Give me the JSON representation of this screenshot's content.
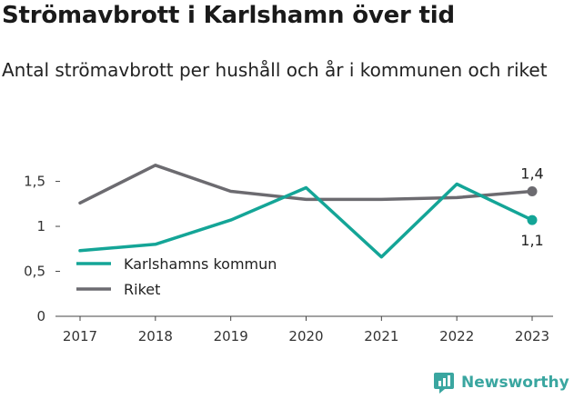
{
  "title": "Strömavbrott i Karlshamn över tid",
  "subtitle": "Antal strömavbrott per hushåll och år i kommunen och riket",
  "brand": {
    "name": "Newsworthy",
    "icon": "newsworthy-logo-icon"
  },
  "colors": {
    "karlshamn": "#14a597",
    "riket": "#6c6b70",
    "brand": "#3aa6a0",
    "axis": "#444444"
  },
  "chart_data": {
    "type": "line",
    "title": "Strömavbrott i Karlshamn över tid",
    "subtitle": "Antal strömavbrott per hushåll och år i kommunen och riket",
    "xlabel": "",
    "ylabel": "",
    "x": [
      "2017",
      "2018",
      "2019",
      "2020",
      "2021",
      "2022",
      "2023"
    ],
    "ylim": [
      0,
      1.9
    ],
    "yticks": [
      0,
      0.5,
      1,
      1.5
    ],
    "ytick_labels": [
      "0",
      "0,5",
      "1",
      "1,5"
    ],
    "grid": false,
    "legend_position": "lower-left",
    "series": [
      {
        "name": "Karlshamns kommun",
        "color": "#14a597",
        "values": [
          0.73,
          0.8,
          1.07,
          1.43,
          0.66,
          1.47,
          1.07
        ],
        "end_label": "1,1",
        "end_label_position": "below"
      },
      {
        "name": "Riket",
        "color": "#6c6b70",
        "values": [
          1.26,
          1.68,
          1.39,
          1.3,
          1.3,
          1.32,
          1.39
        ],
        "end_label": "1,4",
        "end_label_position": "above"
      }
    ]
  }
}
